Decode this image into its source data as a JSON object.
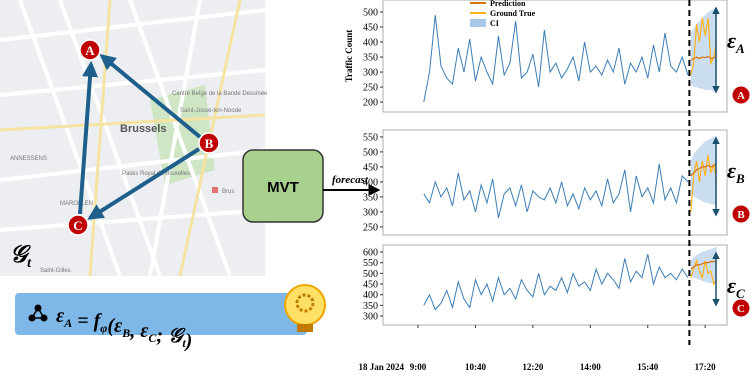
{
  "diagram": {
    "map": {
      "labels": [
        "Brussels",
        "Saint-Josse-ten-Noode",
        "Centre Belge de la Bande Dessinée",
        "Palais Royal de Bruxelles",
        "ANNESSENS",
        "MAROLLEN",
        "Saint-Gilles",
        "Brus"
      ]
    },
    "graph": {
      "nodes": [
        "A",
        "B",
        "C"
      ],
      "label": [
        "𝒢",
        "t"
      ]
    },
    "model": "MVT",
    "arrow_label": "forecast",
    "formula": [
      [
        "ε",
        "A"
      ],
      [
        " = f",
        "φ"
      ],
      [
        "(ε",
        "B"
      ],
      [
        ", ε",
        "C"
      ],
      [
        "; 𝒢",
        "t"
      ],
      [
        ")"
      ]
    ]
  },
  "chart_data": {
    "type": "line",
    "date_label": "18 Jan 2024",
    "xlim": [
      "7:59",
      "17:58"
    ],
    "xticks": [
      "9:00",
      "10:40",
      "12:20",
      "14:00",
      "15:40",
      "17:20"
    ],
    "x": [
      "9:10",
      "9:20",
      "9:30",
      "9:40",
      "9:50",
      "10:00",
      "10:10",
      "10:20",
      "10:30",
      "10:40",
      "10:50",
      "11:00",
      "11:10",
      "11:20",
      "11:30",
      "11:40",
      "11:50",
      "12:00",
      "12:10",
      "12:20",
      "12:30",
      "12:40",
      "12:50",
      "13:00",
      "13:10",
      "13:20",
      "13:30",
      "13:40",
      "13:50",
      "14:00",
      "14:10",
      "14:20",
      "14:30",
      "14:40",
      "14:50",
      "15:00",
      "15:10",
      "15:20",
      "15:30",
      "15:40",
      "15:50",
      "16:00",
      "16:10",
      "16:20",
      "16:30",
      "16:40",
      "16:50"
    ],
    "forecast_x": [
      "16:55",
      "17:00",
      "17:05",
      "17:10",
      "17:15",
      "17:20",
      "17:25",
      "17:30",
      "17:35",
      "17:40"
    ],
    "history_color": "#3a7db5",
    "legend": [
      {
        "name": "Prediction",
        "color": "#d9730d"
      },
      {
        "name": "Ground True",
        "color": "#ffb21a"
      },
      {
        "name": "CI",
        "color": "#a9c8e8"
      }
    ],
    "error_symbol": "ε",
    "panels": [
      {
        "ylabel": "Traffic Count",
        "node": "A",
        "ylim": [
          167,
          540
        ],
        "yticks": [
          200,
          250,
          300,
          350,
          400,
          450,
          500
        ],
        "values": [
          200,
          300,
          490,
          320,
          280,
          260,
          380,
          300,
          410,
          270,
          350,
          300,
          260,
          420,
          290,
          330,
          470,
          280,
          300,
          360,
          250,
          440,
          300,
          330,
          280,
          310,
          350,
          270,
          400,
          300,
          320,
          290,
          340,
          300,
          380,
          260,
          330,
          300,
          350,
          280,
          390,
          300,
          430,
          320,
          300,
          350,
          290
        ],
        "prediction": [
          340,
          345,
          350,
          345,
          350,
          348,
          352,
          345,
          348,
          350
        ],
        "ground_truth": [
          290,
          330,
          460,
          400,
          480,
          420,
          480,
          330,
          350,
          400
        ],
        "ci_lower": [
          260,
          250,
          250,
          245,
          245,
          240,
          240,
          240,
          235,
          235
        ],
        "ci_upper": [
          430,
          445,
          460,
          470,
          480,
          490,
          500,
          505,
          510,
          515
        ]
      },
      {
        "node": "B",
        "ylim": [
          223,
          573
        ],
        "yticks": [
          250,
          300,
          350,
          400,
          450,
          500,
          550
        ],
        "values": [
          360,
          330,
          400,
          350,
          380,
          320,
          430,
          340,
          370,
          300,
          390,
          330,
          410,
          280,
          360,
          380,
          320,
          390,
          300,
          370,
          350,
          340,
          380,
          330,
          400,
          320,
          360,
          310,
          380,
          340,
          370,
          320,
          410,
          330,
          360,
          440,
          300,
          420,
          350,
          380,
          330,
          460,
          340,
          380,
          330,
          420,
          400
        ],
        "prediction": [
          420,
          430,
          440,
          445,
          450,
          450,
          455,
          450,
          455,
          460
        ],
        "ground_truth": [
          300,
          420,
          470,
          400,
          470,
          420,
          490,
          430,
          460,
          400
        ],
        "ci_lower": [
          360,
          350,
          345,
          340,
          335,
          330,
          330,
          325,
          325,
          320
        ],
        "ci_upper": [
          470,
          490,
          505,
          515,
          525,
          535,
          540,
          545,
          550,
          555
        ]
      },
      {
        "node": "C",
        "ylim": [
          258,
          633
        ],
        "yticks": [
          300,
          350,
          400,
          450,
          500,
          550,
          600
        ],
        "values": [
          350,
          400,
          330,
          360,
          420,
          340,
          460,
          380,
          340,
          470,
          400,
          450,
          370,
          480,
          400,
          430,
          380,
          470,
          420,
          390,
          500,
          400,
          440,
          420,
          480,
          410,
          500,
          440,
          460,
          420,
          520,
          450,
          500,
          470,
          430,
          570,
          460,
          510,
          480,
          590,
          450,
          530,
          480,
          500,
          470,
          520,
          480
        ],
        "prediction": [
          520,
          530,
          540,
          540,
          545,
          550,
          550,
          555,
          555,
          560
        ],
        "ground_truth": [
          480,
          520,
          560,
          510,
          480,
          560,
          500,
          510,
          450,
          470
        ],
        "ci_lower": [
          490,
          480,
          475,
          470,
          465,
          460,
          455,
          455,
          450,
          450
        ],
        "ci_upper": [
          560,
          575,
          585,
          595,
          600,
          605,
          610,
          615,
          620,
          625
        ]
      }
    ]
  }
}
